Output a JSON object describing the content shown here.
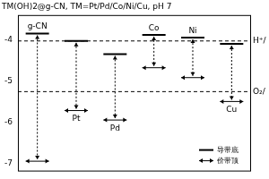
{
  "chart_data": {
    "type": "band",
    "title": "TM(OH)2@g-CN, TM=Pt/Pd/Co/Ni/Cu, pH 7",
    "categories": [
      "g-CN",
      "Pt",
      "Pd",
      "Co",
      "Ni",
      "Cu"
    ],
    "series": [
      {
        "name": "导带底",
        "marker": "line",
        "values": [
          -3.85,
          -4.03,
          -4.35,
          -3.88,
          -3.95,
          -4.1
        ]
      },
      {
        "name": "价带顶",
        "marker": "arrow",
        "values": [
          -6.95,
          -5.72,
          -5.95,
          -4.68,
          -4.92,
          -5.5
        ]
      }
    ],
    "annotations": [
      {
        "text": "H⁺/",
        "y": -4.03,
        "line_style": "dashed"
      },
      {
        "text": "O₂/",
        "y": -5.26,
        "line_style": "dashed"
      }
    ],
    "ylim": [
      -7.2,
      -3.4
    ],
    "yticks": [
      -7,
      -6,
      -5,
      -4
    ],
    "tick_labels": "y",
    "grid": false,
    "legend": "bottom right"
  }
}
